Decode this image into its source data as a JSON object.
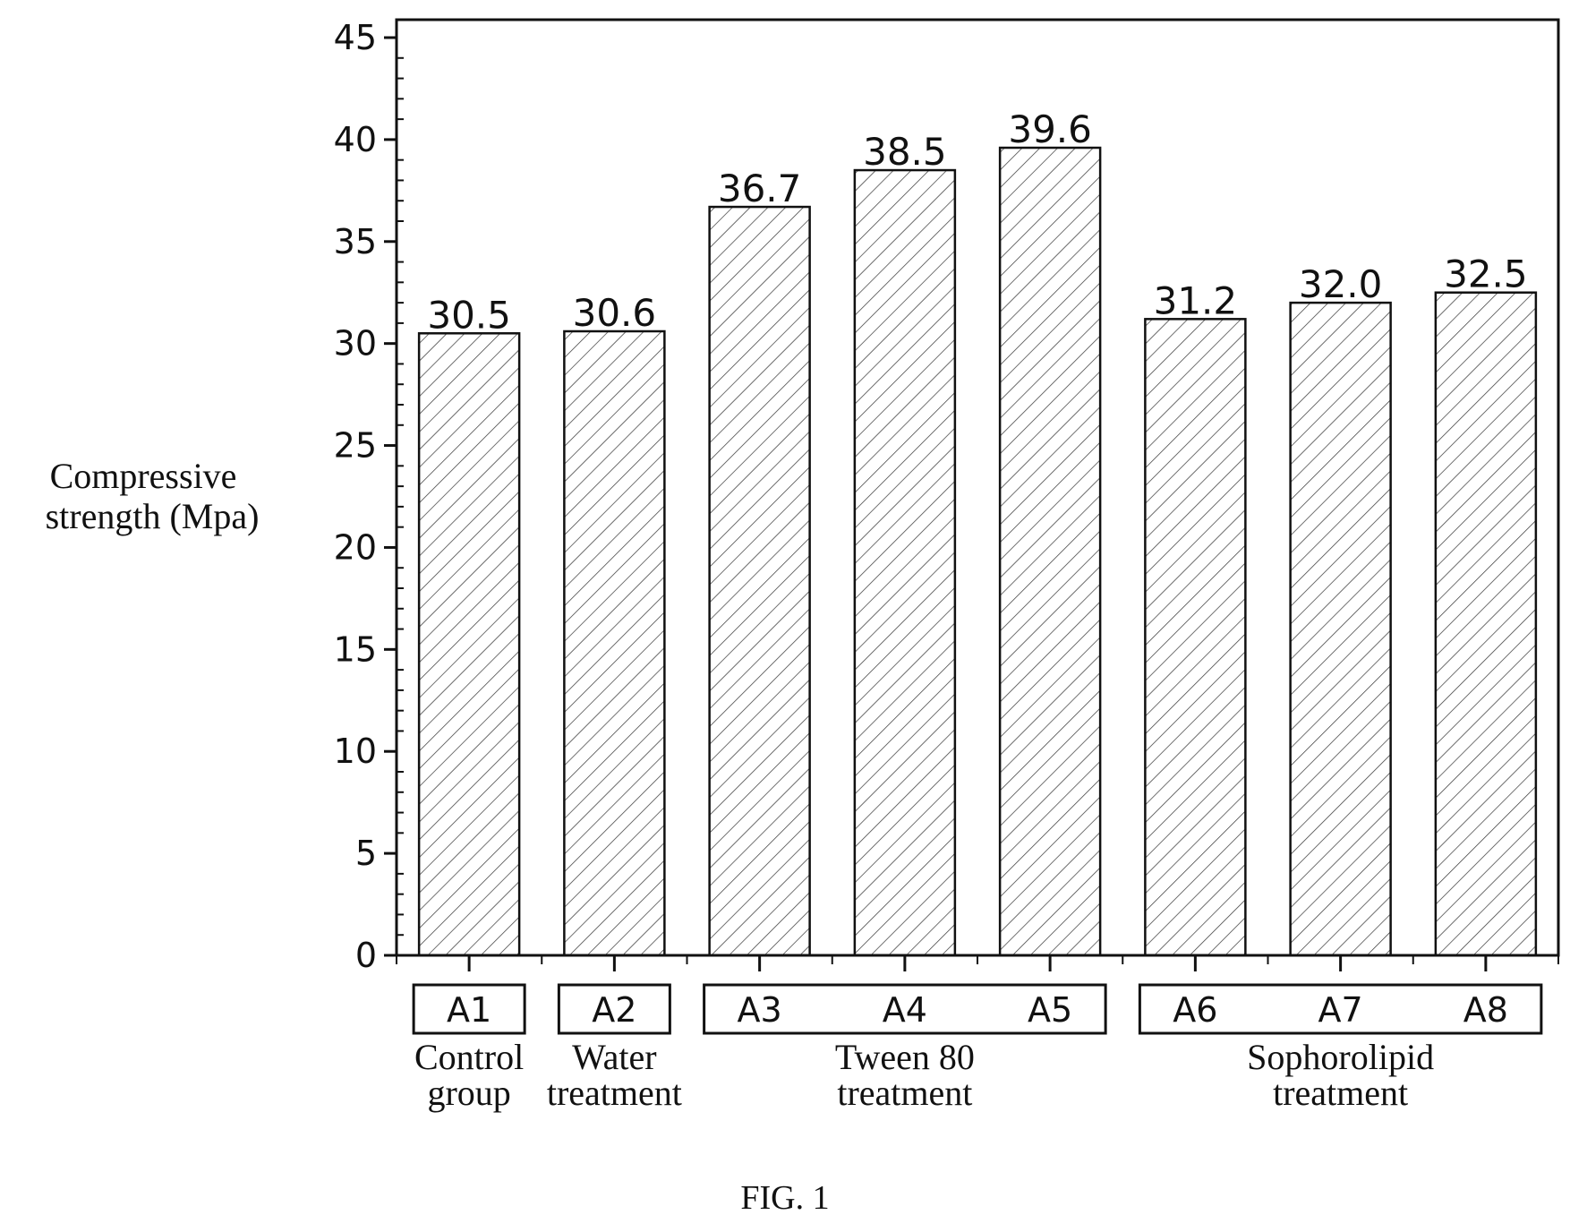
{
  "chart_data": {
    "type": "bar",
    "ylabel_lines": [
      "Compressive",
      "strength (Mpa)"
    ],
    "ylim": [
      0,
      45
    ],
    "yticks": [
      0,
      5,
      10,
      15,
      20,
      25,
      30,
      35,
      40,
      45
    ],
    "categories": [
      "A1",
      "A2",
      "A3",
      "A4",
      "A5",
      "A6",
      "A7",
      "A8"
    ],
    "values": [
      30.5,
      30.6,
      36.7,
      38.5,
      39.6,
      31.2,
      32.0,
      32.5
    ],
    "value_labels": [
      "30.5",
      "30.6",
      "36.7",
      "38.5",
      "39.6",
      "31.2",
      "32.0",
      "32.5"
    ],
    "bar_pattern": "diagonal-hatch",
    "groups": [
      {
        "members": [
          0
        ],
        "lines": [
          "Control",
          "group"
        ]
      },
      {
        "members": [
          1
        ],
        "lines": [
          "Water",
          "treatment"
        ]
      },
      {
        "members": [
          2,
          3,
          4
        ],
        "lines": [
          "Tween 80",
          "treatment"
        ]
      },
      {
        "members": [
          5,
          6,
          7
        ],
        "lines": [
          "Sophorolipid",
          "treatment"
        ]
      }
    ],
    "grid": false,
    "caption": "FIG. 1"
  }
}
